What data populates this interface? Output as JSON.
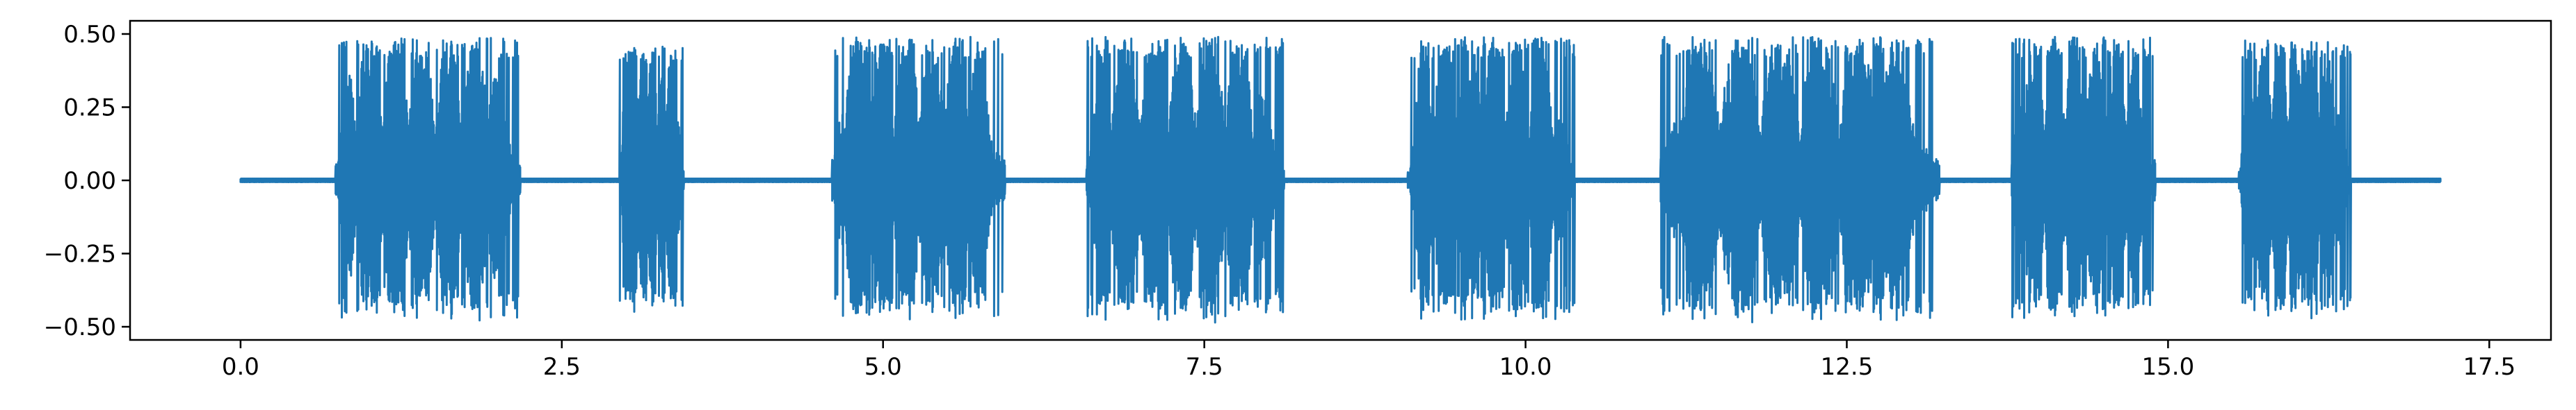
{
  "chart_data": {
    "type": "line",
    "title": "",
    "xlabel": "",
    "ylabel": "",
    "xlim": [
      -0.86,
      17.98
    ],
    "ylim": [
      -0.545,
      0.545
    ],
    "grid": false,
    "x_ticks": [
      {
        "value": 0.0,
        "label": "0.0"
      },
      {
        "value": 2.5,
        "label": "2.5"
      },
      {
        "value": 5.0,
        "label": "5.0"
      },
      {
        "value": 7.5,
        "label": "7.5"
      },
      {
        "value": 10.0,
        "label": "10.0"
      },
      {
        "value": 12.5,
        "label": "12.5"
      },
      {
        "value": 15.0,
        "label": "15.0"
      },
      {
        "value": 17.5,
        "label": "17.5"
      }
    ],
    "y_ticks": [
      {
        "value": 0.5,
        "label": "0.50"
      },
      {
        "value": 0.25,
        "label": "0.25"
      },
      {
        "value": 0.0,
        "label": "0.00"
      },
      {
        "value": -0.25,
        "label": "−0.25"
      },
      {
        "value": -0.5,
        "label": "−0.50"
      }
    ],
    "series": [
      {
        "color": "#1f77b4",
        "signal_duration": 17.12,
        "bursts": [
          {
            "start": 0.74,
            "end": 2.18,
            "peak": 0.49
          },
          {
            "start": 2.95,
            "end": 3.45,
            "peak": 0.46
          },
          {
            "start": 4.6,
            "end": 5.95,
            "peak": 0.49
          },
          {
            "start": 6.58,
            "end": 8.12,
            "peak": 0.49
          },
          {
            "start": 9.08,
            "end": 10.38,
            "peak": 0.49
          },
          {
            "start": 11.05,
            "end": 13.22,
            "peak": 0.49
          },
          {
            "start": 13.78,
            "end": 14.9,
            "peak": 0.49
          },
          {
            "start": 15.55,
            "end": 16.42,
            "peak": 0.48
          }
        ]
      }
    ]
  }
}
